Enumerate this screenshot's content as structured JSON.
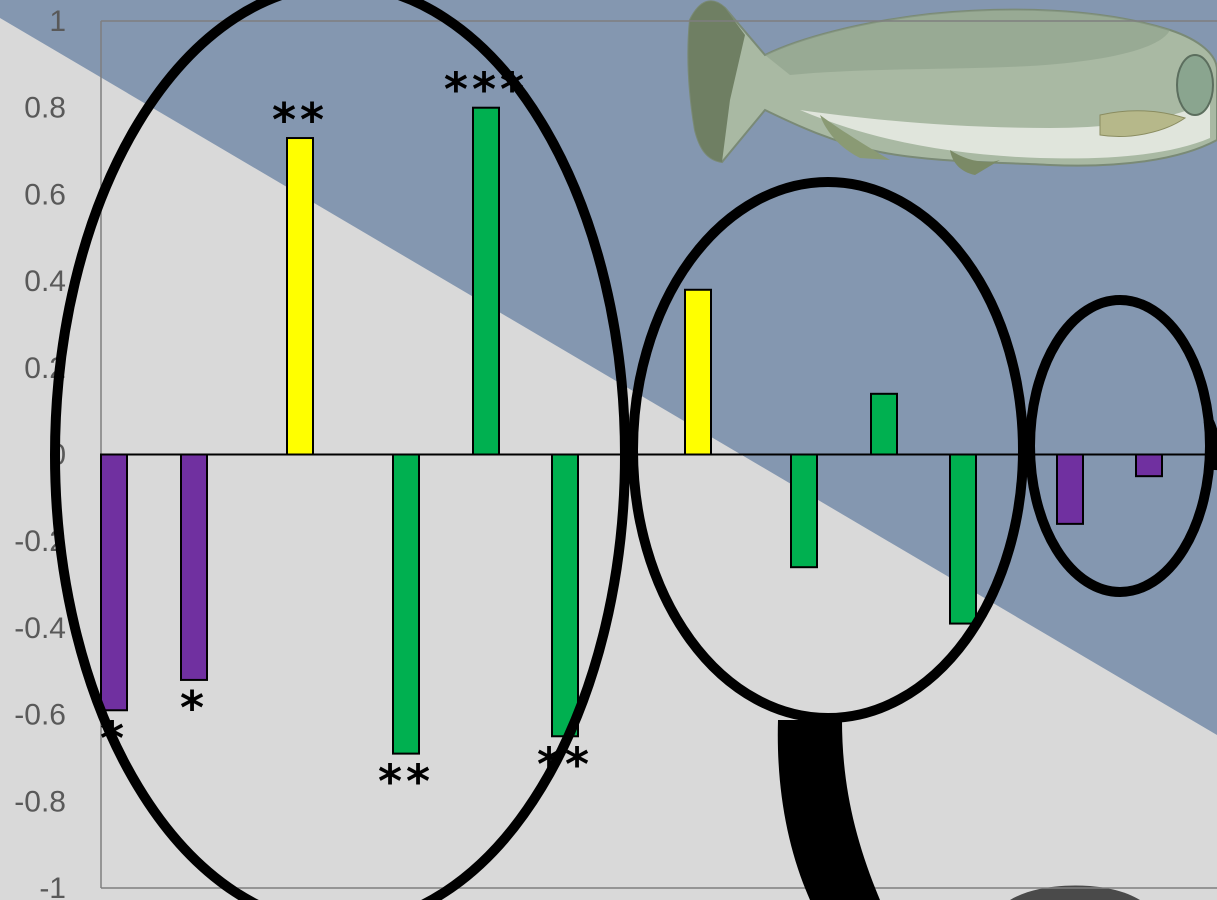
{
  "colors": {
    "background_light": "#d9d9d9",
    "background_blue": "#8497b0",
    "purple": "#7030a0",
    "yellow": "#ffff00",
    "green": "#00b050",
    "outline": "#000000"
  },
  "decorations": {
    "top_image": "salmon-fish-illustration",
    "bottom_image": "partial-dark-fish-illustration",
    "overlays": [
      "magnifying-glass-large-ellipse",
      "magnifying-glass-medium-ellipse",
      "magnifying-glass-small-ellipse",
      "magnifying-glass-handle"
    ]
  },
  "chart_data": {
    "type": "bar",
    "ylim": [
      -1,
      1
    ],
    "y_ticks": [
      "1",
      "0.8",
      "0.6",
      "0.4",
      "0.2",
      "0",
      "-0.2",
      "-0.4",
      "-0.6",
      "-0.8",
      "-1"
    ],
    "grid": false,
    "legend": "none",
    "series": [
      {
        "values": [
          -0.59,
          -0.52,
          0.73,
          -0.69,
          0.8,
          -0.65,
          0.38,
          -0.26,
          0.14,
          -0.39,
          -0.16,
          -0.05
        ],
        "colors": [
          "#7030a0",
          "#7030a0",
          "#ffff00",
          "#00b050",
          "#00b050",
          "#00b050",
          "#ffff00",
          "#00b050",
          "#00b050",
          "#00b050",
          "#7030a0",
          "#7030a0"
        ],
        "significance": [
          "*",
          "*",
          "**",
          "**",
          "***",
          "**",
          "",
          "",
          "",
          "",
          "",
          ""
        ]
      }
    ]
  }
}
